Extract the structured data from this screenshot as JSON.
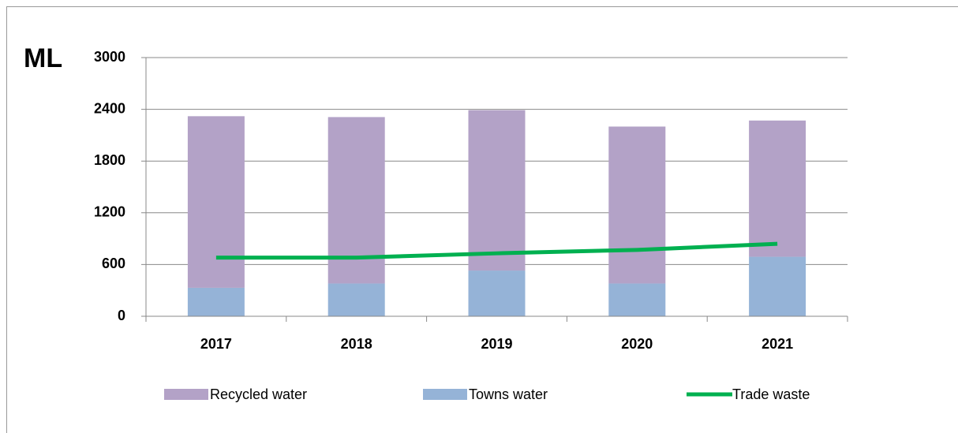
{
  "chart_data": {
    "type": "bar",
    "y_label": "ML",
    "categories": [
      "2017",
      "2018",
      "2019",
      "2020",
      "2021"
    ],
    "series": [
      {
        "name": "Recycled water",
        "type": "bar",
        "color": "#b3a2c7",
        "values": [
          1990,
          1930,
          1860,
          1820,
          1580
        ]
      },
      {
        "name": "Towns water",
        "type": "bar",
        "color": "#95b3d7",
        "values": [
          330,
          380,
          530,
          380,
          690
        ]
      },
      {
        "name": "Trade waste",
        "type": "line",
        "color": "#00b050",
        "values": [
          680,
          680,
          730,
          770,
          840
        ]
      }
    ],
    "ylim": [
      0,
      3000
    ],
    "yticks": [
      0,
      600,
      1200,
      1800,
      2400,
      3000
    ],
    "grid": true,
    "legend": "bottom"
  }
}
